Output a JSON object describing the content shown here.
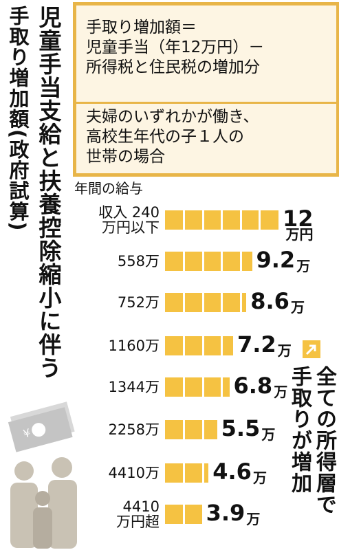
{
  "title_lines": [
    "児童手当支給と扶養控除縮小に伴う",
    "手取り増加額(政府試算)"
  ],
  "info_box": {
    "formula": "手取り増加額＝\n児童手当（年12万円）－\n所得税と住民税の増加分",
    "condition": "夫婦のいずれかが働き、\n高校生年代の子１人の\n世帯の場合"
  },
  "chart_data": {
    "type": "bar",
    "orientation": "horizontal",
    "axis_label": "年間の給与",
    "categories": [
      "収入 240\n万円以下",
      "558万",
      "752万",
      "1160万",
      "1344万",
      "2258万",
      "4410万",
      "4410\n万円超"
    ],
    "values": [
      12,
      9.2,
      8.6,
      7.2,
      6.8,
      5.5,
      4.6,
      3.9
    ],
    "value_units": [
      "万円",
      "万",
      "万",
      "万",
      "万",
      "万",
      "万",
      "万"
    ],
    "color": "#f5c242"
  },
  "annotation": "全ての所得層で\n手取りが増加"
}
